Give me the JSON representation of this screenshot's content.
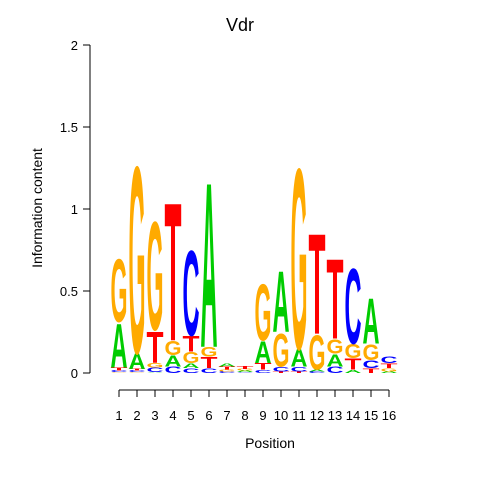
{
  "chart_data": {
    "type": "sequence-logo",
    "title": "Vdr",
    "xlabel": "Position",
    "ylabel": "Information content",
    "ylim": [
      0,
      2
    ],
    "yticks": [
      "0",
      "0.5",
      "1",
      "1.5",
      "2"
    ],
    "yticks_values": [
      0,
      0.5,
      1,
      1.5,
      2
    ],
    "positions": [
      "1",
      "2",
      "3",
      "4",
      "5",
      "6",
      "7",
      "8",
      "9",
      "10",
      "11",
      "12",
      "13",
      "14",
      "15",
      "16"
    ],
    "colors": {
      "A": "#00cc00",
      "C": "#0000ff",
      "G": "#ffaa00",
      "T": "#ff0000"
    },
    "stacks": [
      [
        [
          "G",
          0.005
        ],
        [
          "C",
          0.01
        ],
        [
          "T",
          0.02
        ],
        [
          "A",
          0.28
        ],
        [
          "G",
          0.4
        ]
      ],
      [
        [
          "G",
          0.005
        ],
        [
          "C",
          0.01
        ],
        [
          "T",
          0.01
        ],
        [
          "A",
          0.1
        ],
        [
          "G",
          1.19
        ]
      ],
      [
        [
          "A",
          0.005
        ],
        [
          "C",
          0.03
        ],
        [
          "G",
          0.03
        ],
        [
          "T",
          0.2
        ],
        [
          "G",
          0.69
        ]
      ],
      [
        [
          "C",
          0.04
        ],
        [
          "A",
          0.07
        ],
        [
          "G",
          0.09
        ],
        [
          "T",
          0.88
        ]
      ],
      [
        [
          "C",
          0.03
        ],
        [
          "A",
          0.03
        ],
        [
          "G",
          0.07
        ],
        [
          "T",
          0.1
        ],
        [
          "C",
          0.54
        ]
      ],
      [
        [
          "C",
          0.03
        ],
        [
          "T",
          0.07
        ],
        [
          "G",
          0.06
        ],
        [
          "A",
          1.05
        ]
      ],
      [
        [
          "C",
          0.01
        ],
        [
          "G",
          0.01
        ],
        [
          "T",
          0.02
        ],
        [
          "A",
          0.02
        ]
      ],
      [
        [
          "C",
          0.005
        ],
        [
          "A",
          0.01
        ],
        [
          "G",
          0.01
        ],
        [
          "T",
          0.02
        ]
      ],
      [
        [
          "C",
          0.02
        ],
        [
          "T",
          0.04
        ],
        [
          "A",
          0.14
        ],
        [
          "G",
          0.36
        ]
      ],
      [
        [
          "T",
          0.01
        ],
        [
          "C",
          0.03
        ],
        [
          "G",
          0.21
        ],
        [
          "A",
          0.39
        ]
      ],
      [
        [
          "T",
          0.01
        ],
        [
          "C",
          0.03
        ],
        [
          "A",
          0.11
        ],
        [
          "G",
          1.15
        ]
      ],
      [
        [
          "C",
          0.01
        ],
        [
          "A",
          0.01
        ],
        [
          "G",
          0.22
        ],
        [
          "T",
          0.64
        ]
      ],
      [
        [
          "C",
          0.04
        ],
        [
          "A",
          0.08
        ],
        [
          "G",
          0.09
        ],
        [
          "T",
          0.51
        ]
      ],
      [
        [
          "A",
          0.02
        ],
        [
          "T",
          0.07
        ],
        [
          "G",
          0.09
        ],
        [
          "C",
          0.48
        ]
      ],
      [
        [
          "T",
          0.03
        ],
        [
          "C",
          0.05
        ],
        [
          "G",
          0.1
        ],
        [
          "A",
          0.29
        ]
      ],
      [
        [
          "A",
          0.01
        ],
        [
          "G",
          0.02
        ],
        [
          "T",
          0.03
        ],
        [
          "C",
          0.04
        ]
      ]
    ]
  }
}
